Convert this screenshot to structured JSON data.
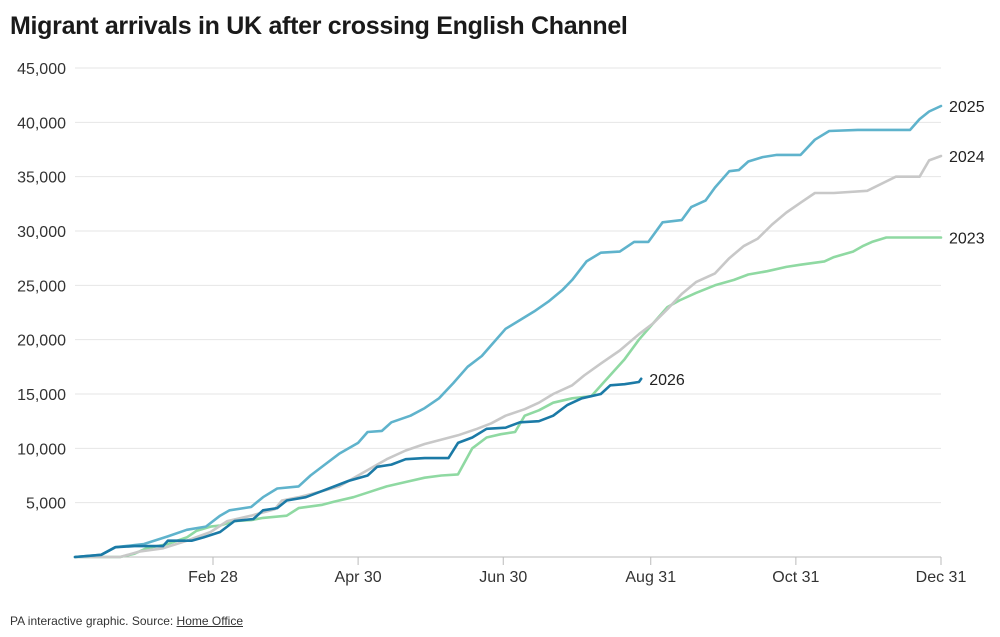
{
  "chart_data": {
    "type": "line",
    "title": "Migrant arrivals in UK after crossing English Channel",
    "xlabel": "",
    "ylabel": "",
    "x_tick_labels": [
      "Feb 28",
      "Apr 30",
      "Jun 30",
      "Aug 31",
      "Oct 31",
      "Dec 31"
    ],
    "x_tick_days": [
      59,
      120,
      181,
      243,
      304,
      365
    ],
    "xlim": [
      1,
      365
    ],
    "y_ticks": [
      5000,
      10000,
      15000,
      20000,
      25000,
      30000,
      35000,
      40000,
      45000
    ],
    "y_tick_labels": [
      "5,000",
      "10,000",
      "15,000",
      "20,000",
      "25,000",
      "30,000",
      "35,000",
      "40,000",
      "45,000"
    ],
    "ylim": [
      0,
      45000
    ],
    "grid": true,
    "legend": "direct labels at line ends",
    "series": [
      {
        "name": "2023",
        "color": "#8fd9a2",
        "points": [
          [
            1,
            0
          ],
          [
            20,
            0
          ],
          [
            26,
            300
          ],
          [
            31,
            800
          ],
          [
            40,
            1200
          ],
          [
            48,
            1800
          ],
          [
            52,
            2400
          ],
          [
            58,
            2800
          ],
          [
            62,
            2900
          ],
          [
            68,
            3300
          ],
          [
            75,
            3400
          ],
          [
            80,
            3600
          ],
          [
            90,
            3800
          ],
          [
            95,
            4500
          ],
          [
            105,
            4800
          ],
          [
            110,
            5100
          ],
          [
            118,
            5500
          ],
          [
            125,
            6000
          ],
          [
            132,
            6500
          ],
          [
            140,
            6900
          ],
          [
            148,
            7300
          ],
          [
            155,
            7500
          ],
          [
            162,
            7600
          ],
          [
            168,
            10000
          ],
          [
            174,
            11000
          ],
          [
            180,
            11300
          ],
          [
            186,
            11500
          ],
          [
            190,
            13000
          ],
          [
            196,
            13500
          ],
          [
            202,
            14200
          ],
          [
            210,
            14600
          ],
          [
            218,
            14800
          ],
          [
            225,
            16500
          ],
          [
            232,
            18200
          ],
          [
            238,
            20000
          ],
          [
            244,
            21500
          ],
          [
            250,
            23000
          ],
          [
            255,
            23600
          ],
          [
            262,
            24300
          ],
          [
            270,
            25000
          ],
          [
            278,
            25500
          ],
          [
            284,
            26000
          ],
          [
            292,
            26300
          ],
          [
            300,
            26700
          ],
          [
            306,
            26900
          ],
          [
            316,
            27200
          ],
          [
            320,
            27600
          ],
          [
            328,
            28100
          ],
          [
            332,
            28600
          ],
          [
            336,
            29000
          ],
          [
            342,
            29400
          ],
          [
            365,
            29400
          ]
        ]
      },
      {
        "name": "2024",
        "color": "#c8c8c8",
        "points": [
          [
            1,
            0
          ],
          [
            20,
            0
          ],
          [
            28,
            500
          ],
          [
            38,
            800
          ],
          [
            48,
            1500
          ],
          [
            58,
            2300
          ],
          [
            65,
            3300
          ],
          [
            75,
            3800
          ],
          [
            85,
            4400
          ],
          [
            88,
            5200
          ],
          [
            95,
            5500
          ],
          [
            104,
            6000
          ],
          [
            112,
            6500
          ],
          [
            120,
            7500
          ],
          [
            124,
            8000
          ],
          [
            132,
            9000
          ],
          [
            140,
            9800
          ],
          [
            148,
            10400
          ],
          [
            155,
            10800
          ],
          [
            162,
            11200
          ],
          [
            170,
            11800
          ],
          [
            176,
            12300
          ],
          [
            182,
            13000
          ],
          [
            190,
            13600
          ],
          [
            196,
            14200
          ],
          [
            202,
            15000
          ],
          [
            210,
            15800
          ],
          [
            215,
            16700
          ],
          [
            222,
            17800
          ],
          [
            230,
            19000
          ],
          [
            238,
            20500
          ],
          [
            244,
            21500
          ],
          [
            250,
            22800
          ],
          [
            256,
            24200
          ],
          [
            262,
            25300
          ],
          [
            270,
            26100
          ],
          [
            276,
            27500
          ],
          [
            282,
            28600
          ],
          [
            288,
            29300
          ],
          [
            294,
            30600
          ],
          [
            300,
            31700
          ],
          [
            306,
            32600
          ],
          [
            312,
            33500
          ],
          [
            320,
            33500
          ],
          [
            334,
            33700
          ],
          [
            346,
            35000
          ],
          [
            356,
            35000
          ],
          [
            360,
            36500
          ],
          [
            365,
            36900
          ]
        ]
      },
      {
        "name": "2025",
        "color": "#5fb3cc",
        "points": [
          [
            1,
            0
          ],
          [
            12,
            200
          ],
          [
            18,
            900
          ],
          [
            30,
            1200
          ],
          [
            40,
            1900
          ],
          [
            48,
            2500
          ],
          [
            56,
            2800
          ],
          [
            62,
            3800
          ],
          [
            66,
            4300
          ],
          [
            75,
            4600
          ],
          [
            80,
            5500
          ],
          [
            86,
            6300
          ],
          [
            95,
            6500
          ],
          [
            100,
            7500
          ],
          [
            106,
            8500
          ],
          [
            112,
            9500
          ],
          [
            120,
            10500
          ],
          [
            124,
            11500
          ],
          [
            130,
            11600
          ],
          [
            134,
            12400
          ],
          [
            142,
            13000
          ],
          [
            148,
            13700
          ],
          [
            154,
            14600
          ],
          [
            160,
            16000
          ],
          [
            166,
            17500
          ],
          [
            172,
            18500
          ],
          [
            176,
            19500
          ],
          [
            182,
            21000
          ],
          [
            188,
            21800
          ],
          [
            194,
            22600
          ],
          [
            200,
            23500
          ],
          [
            206,
            24600
          ],
          [
            210,
            25500
          ],
          [
            216,
            27200
          ],
          [
            222,
            28000
          ],
          [
            230,
            28100
          ],
          [
            236,
            29000
          ],
          [
            242,
            29000
          ],
          [
            248,
            30800
          ],
          [
            256,
            31000
          ],
          [
            260,
            32200
          ],
          [
            266,
            32800
          ],
          [
            270,
            34000
          ],
          [
            276,
            35500
          ],
          [
            280,
            35600
          ],
          [
            284,
            36400
          ],
          [
            290,
            36800
          ],
          [
            296,
            37000
          ],
          [
            306,
            37000
          ],
          [
            312,
            38400
          ],
          [
            318,
            39200
          ],
          [
            330,
            39300
          ],
          [
            352,
            39300
          ],
          [
            356,
            40300
          ],
          [
            360,
            41000
          ],
          [
            365,
            41500
          ]
        ]
      },
      {
        "name": "2026",
        "color": "#1b7aa6",
        "points": [
          [
            1,
            0
          ],
          [
            12,
            200
          ],
          [
            18,
            900
          ],
          [
            26,
            1000
          ],
          [
            38,
            1000
          ],
          [
            40,
            1500
          ],
          [
            50,
            1500
          ],
          [
            55,
            1800
          ],
          [
            62,
            2300
          ],
          [
            68,
            3300
          ],
          [
            76,
            3500
          ],
          [
            80,
            4300
          ],
          [
            86,
            4500
          ],
          [
            90,
            5200
          ],
          [
            98,
            5500
          ],
          [
            104,
            6000
          ],
          [
            110,
            6500
          ],
          [
            116,
            7000
          ],
          [
            124,
            7500
          ],
          [
            128,
            8300
          ],
          [
            134,
            8500
          ],
          [
            140,
            9000
          ],
          [
            148,
            9100
          ],
          [
            158,
            9100
          ],
          [
            162,
            10500
          ],
          [
            168,
            11000
          ],
          [
            174,
            11800
          ],
          [
            182,
            11900
          ],
          [
            188,
            12400
          ],
          [
            196,
            12500
          ],
          [
            202,
            13000
          ],
          [
            208,
            14000
          ],
          [
            214,
            14600
          ],
          [
            222,
            15000
          ],
          [
            226,
            15800
          ],
          [
            232,
            15900
          ],
          [
            238,
            16100
          ],
          [
            239,
            16400
          ]
        ]
      }
    ]
  },
  "source": {
    "prefix": "PA interactive graphic. Source: ",
    "link": "Home Office"
  }
}
